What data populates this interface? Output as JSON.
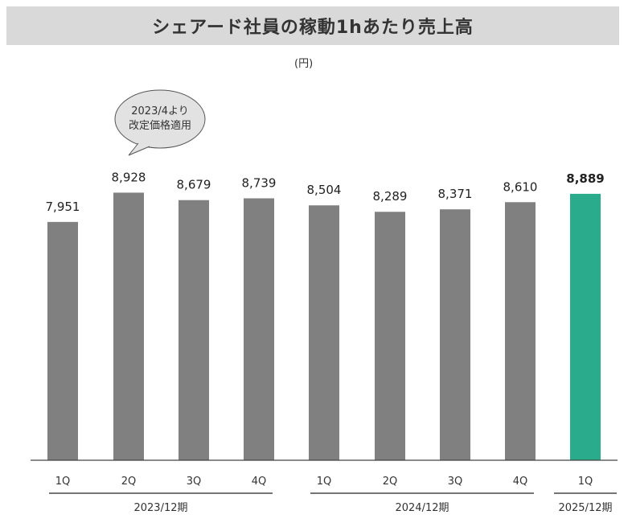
{
  "title": "シェアード社員の稼動1hあたり売上高",
  "unit": "(円)",
  "callout": {
    "line1": "2023/4より",
    "line2": "改定価格適用"
  },
  "colors": {
    "bar": "#808080",
    "highlight": "#2aac8c",
    "axis": "#444444",
    "title_bg": "#d9d9d9"
  },
  "chart_data": {
    "type": "bar",
    "categories": [
      "1Q",
      "2Q",
      "3Q",
      "4Q",
      "1Q",
      "2Q",
      "3Q",
      "4Q",
      "1Q"
    ],
    "values": [
      7951,
      8928,
      8679,
      8739,
      8504,
      8289,
      8371,
      8610,
      8889
    ],
    "value_labels": [
      "7,951",
      "8,928",
      "8,679",
      "8,739",
      "8,504",
      "8,289",
      "8,371",
      "8,610",
      "8,889"
    ],
    "groups": [
      {
        "label": "2023/12期",
        "start": 0,
        "end": 3
      },
      {
        "label": "2024/12期",
        "start": 4,
        "end": 7
      },
      {
        "label": "2025/12期",
        "start": 8,
        "end": 8
      }
    ],
    "highlight_index": 8,
    "ylim": [
      0,
      10000
    ],
    "ylabel": "(円)",
    "grid": false
  }
}
